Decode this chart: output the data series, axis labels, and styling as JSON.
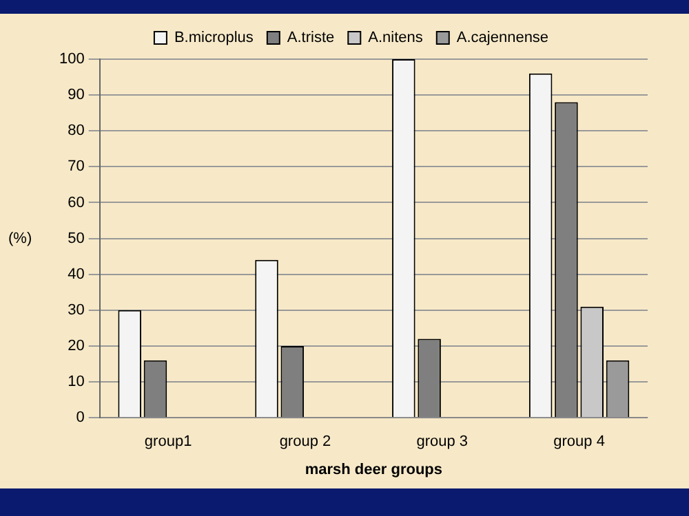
{
  "chart_data": {
    "type": "bar",
    "xlabel": "marsh deer groups",
    "ylabel": "(%)",
    "categories": [
      "group1",
      "group 2",
      "group 3",
      "group 4"
    ],
    "series": [
      {
        "name": "B.microplus",
        "color": "#f4f4f4",
        "values": [
          30,
          44,
          100,
          96
        ]
      },
      {
        "name": "A.triste",
        "color": "#7f7f7f",
        "values": [
          16,
          20,
          22,
          88
        ]
      },
      {
        "name": "A.nitens",
        "color": "#c8c8c8",
        "values": [
          0,
          0,
          0,
          31
        ]
      },
      {
        "name": "A.cajennense",
        "color": "#9a9a9a",
        "values": [
          0,
          0,
          0,
          16
        ]
      }
    ],
    "ylim": [
      0,
      100
    ],
    "yticks": [
      0,
      10,
      20,
      30,
      40,
      50,
      60,
      70,
      80,
      90,
      100
    ],
    "grid": "y",
    "legend": "top"
  }
}
